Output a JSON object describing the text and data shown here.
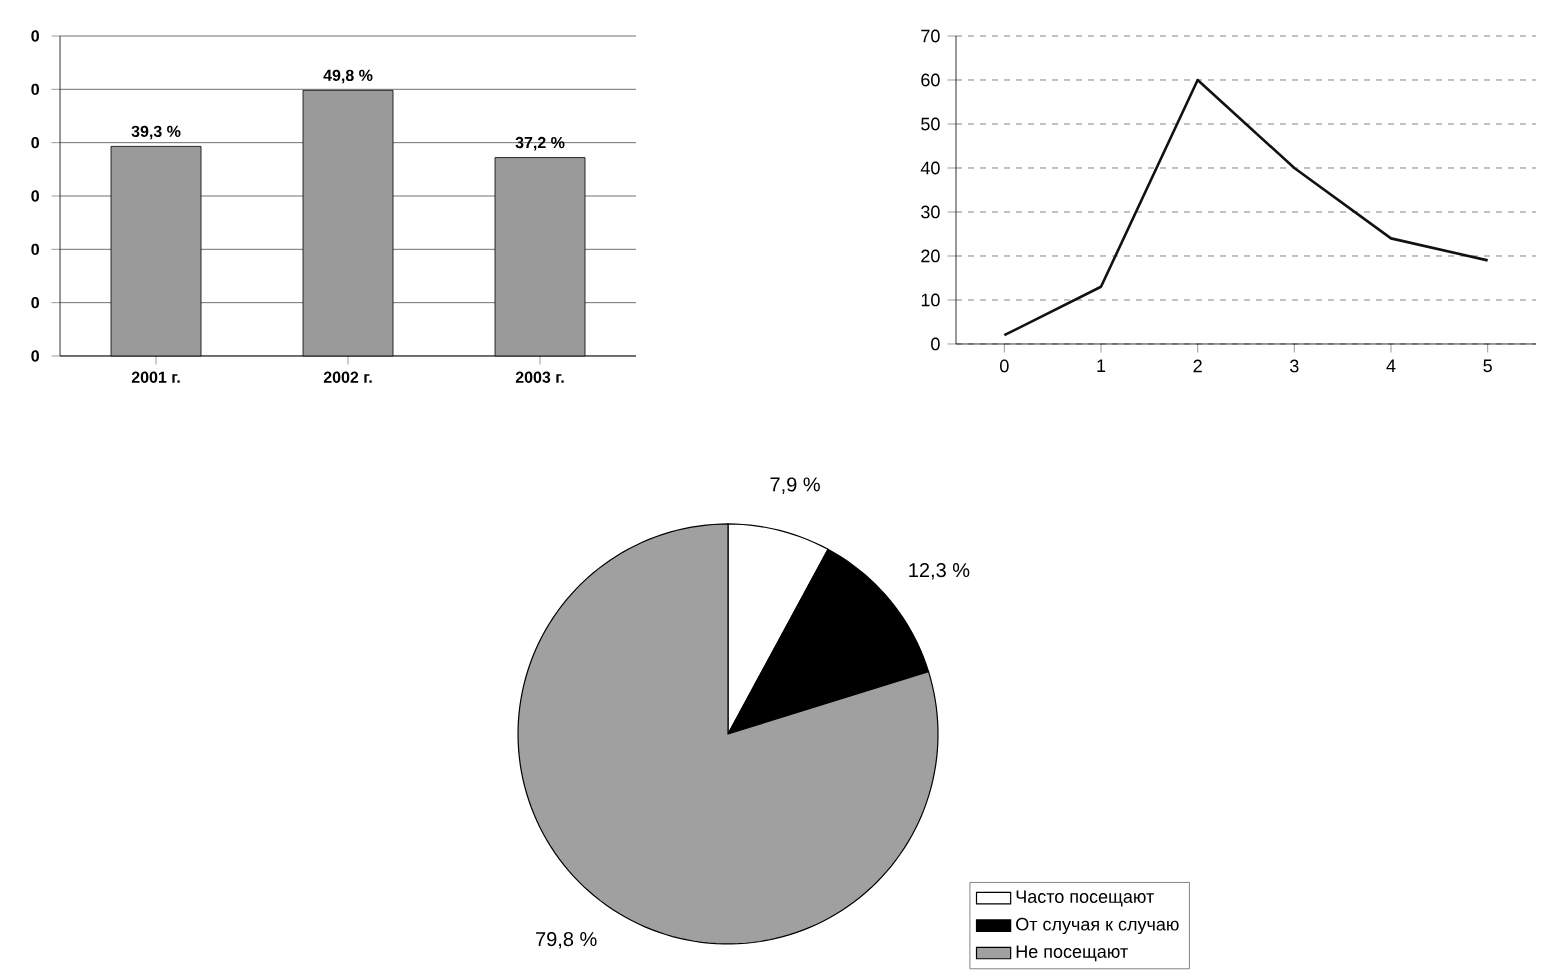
{
  "chart_data": [
    {
      "type": "bar",
      "categories": [
        "2001 г.",
        "2002 г.",
        "2003 г."
      ],
      "values": [
        39.3,
        49.8,
        37.2
      ],
      "value_labels": [
        "39,3 %",
        "49,8 %",
        "37,2 %"
      ],
      "color": "#9a9a9a",
      "ylim": [
        0,
        60
      ],
      "yticks": [
        {
          "value": 0,
          "label": null
        },
        {
          "value": 10,
          "label": null
        },
        {
          "value": 20,
          "label": null
        },
        {
          "value": 30,
          "label": null
        },
        {
          "value": 40,
          "label": null
        },
        {
          "value": 50,
          "label": null
        },
        {
          "value": 60,
          "label": null
        }
      ],
      "grid": "y",
      "annotations": [
        "0",
        "0",
        "0",
        "0",
        "0",
        "0",
        "0"
      ]
    },
    {
      "type": "line",
      "categories": [
        "0",
        "1",
        "2",
        "3",
        "4",
        "5"
      ],
      "values": [
        2,
        13,
        60,
        40,
        24,
        19
      ],
      "color": "#111111",
      "ylim": [
        0,
        70
      ],
      "yticks": [
        0,
        10,
        20,
        30,
        40,
        50,
        60,
        70
      ],
      "grid": "y",
      "line_style": "solid"
    },
    {
      "type": "pie",
      "categories": [
        "Часто посещают",
        "От случая к случаю",
        "Не посещают"
      ],
      "values": [
        7.9,
        12.3,
        79.8
      ],
      "value_labels": [
        "7,9 %",
        "12,3 %",
        "79,8 %"
      ],
      "colors": [
        "#ffffff",
        "#000000",
        "#a0a0a0"
      ],
      "legend": "bottom right"
    }
  ]
}
